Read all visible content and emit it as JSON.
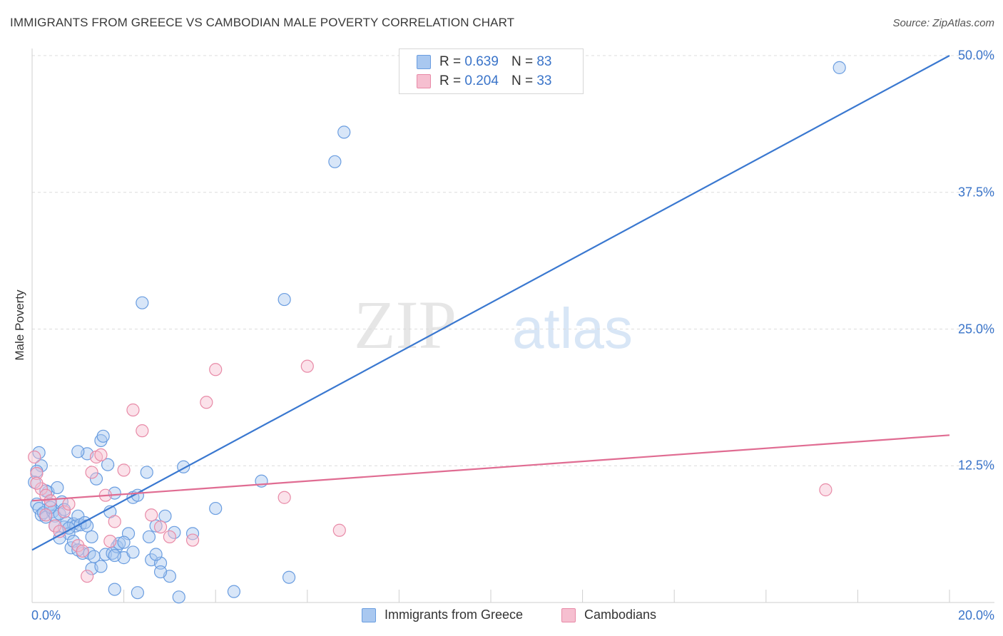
{
  "header": {
    "title": "IMMIGRANTS FROM GREECE VS CAMBODIAN MALE POVERTY CORRELATION CHART",
    "source": "Source: ZipAtlas.com"
  },
  "watermark": {
    "zip": "ZIP",
    "atlas": "atlas"
  },
  "legend": {
    "rows": [
      {
        "r_label": "R =",
        "r_value": "0.639",
        "n_label": "N =",
        "n_value": "83",
        "color": "#a9c8f0"
      },
      {
        "r_label": "R =",
        "r_value": "0.204",
        "n_label": "N =",
        "n_value": "33",
        "color": "#f6bfd0"
      }
    ]
  },
  "chart_data": {
    "type": "scatter",
    "ylabel": "Male Poverty",
    "xlim": [
      0,
      20
    ],
    "ylim": [
      0,
      50
    ],
    "x_tick_labels": [
      "0.0%",
      "20.0%"
    ],
    "y_ticks": [
      12.5,
      25.0,
      37.5,
      50.0
    ],
    "y_tick_labels": [
      "12.5%",
      "25.0%",
      "37.5%",
      "50.0%"
    ],
    "grid": true,
    "legend_position": "top-center",
    "series": [
      {
        "name": "Immigrants from Greece",
        "color": "#6a9de0",
        "fill": "#a9c8f0",
        "trend": {
          "x": [
            0,
            20
          ],
          "y": [
            4.8,
            50.0
          ],
          "color": "#3a78d0"
        },
        "points": [
          [
            0.1,
            9.0
          ],
          [
            0.15,
            8.6
          ],
          [
            0.2,
            8.0
          ],
          [
            0.25,
            8.2
          ],
          [
            0.3,
            7.8
          ],
          [
            0.35,
            10.1
          ],
          [
            0.4,
            9.0
          ],
          [
            0.45,
            8.3
          ],
          [
            0.5,
            7.9
          ],
          [
            0.55,
            10.5
          ],
          [
            0.6,
            8.1
          ],
          [
            0.65,
            9.2
          ],
          [
            0.7,
            6.9
          ],
          [
            0.75,
            7.3
          ],
          [
            0.8,
            6.3
          ],
          [
            0.85,
            5.0
          ],
          [
            0.9,
            7.2
          ],
          [
            0.95,
            7.0
          ],
          [
            1.0,
            7.9
          ],
          [
            1.05,
            7.1
          ],
          [
            1.1,
            4.5
          ],
          [
            1.15,
            7.3
          ],
          [
            1.2,
            7.0
          ],
          [
            1.25,
            4.5
          ],
          [
            1.3,
            3.1
          ],
          [
            1.35,
            4.2
          ],
          [
            1.4,
            11.3
          ],
          [
            1.5,
            14.8
          ],
          [
            1.55,
            15.2
          ],
          [
            1.6,
            4.4
          ],
          [
            1.65,
            12.6
          ],
          [
            1.7,
            8.3
          ],
          [
            1.75,
            4.5
          ],
          [
            1.8,
            10.0
          ],
          [
            1.85,
            5.1
          ],
          [
            1.9,
            5.4
          ],
          [
            2.0,
            4.1
          ],
          [
            2.1,
            6.3
          ],
          [
            2.2,
            9.6
          ],
          [
            2.3,
            9.8
          ],
          [
            2.4,
            27.4
          ],
          [
            2.5,
            11.9
          ],
          [
            2.55,
            6.0
          ],
          [
            2.6,
            3.9
          ],
          [
            2.7,
            7.0
          ],
          [
            2.8,
            3.6
          ],
          [
            2.9,
            7.9
          ],
          [
            3.0,
            2.4
          ],
          [
            3.1,
            6.4
          ],
          [
            3.3,
            12.4
          ],
          [
            3.5,
            6.3
          ],
          [
            4.0,
            8.6
          ],
          [
            4.4,
            1.0
          ],
          [
            5.0,
            11.1
          ],
          [
            5.5,
            27.7
          ],
          [
            5.6,
            2.3
          ],
          [
            6.6,
            40.3
          ],
          [
            6.8,
            43.0
          ],
          [
            1.2,
            13.6
          ],
          [
            1.0,
            13.8
          ],
          [
            0.3,
            10.2
          ],
          [
            0.4,
            8.7
          ],
          [
            0.5,
            7.0
          ],
          [
            0.6,
            5.9
          ],
          [
            0.7,
            8.5
          ],
          [
            0.8,
            6.8
          ],
          [
            0.9,
            5.6
          ],
          [
            1.0,
            4.8
          ],
          [
            1.5,
            3.3
          ],
          [
            1.8,
            4.3
          ],
          [
            2.0,
            5.5
          ],
          [
            2.2,
            4.6
          ],
          [
            2.3,
            0.9
          ],
          [
            2.7,
            4.4
          ],
          [
            2.8,
            2.8
          ],
          [
            3.2,
            0.5
          ],
          [
            1.3,
            6.0
          ],
          [
            0.2,
            12.5
          ],
          [
            0.15,
            13.7
          ],
          [
            0.1,
            12.0
          ],
          [
            1.8,
            1.2
          ],
          [
            17.6,
            48.9
          ],
          [
            0.05,
            11.0
          ]
        ]
      },
      {
        "name": "Cambodians",
        "color": "#e88aa7",
        "fill": "#f6bfd0",
        "trend": {
          "x": [
            0,
            20
          ],
          "y": [
            9.3,
            15.3
          ],
          "color": "#e06c92"
        },
        "points": [
          [
            0.05,
            13.3
          ],
          [
            0.1,
            11.8
          ],
          [
            0.2,
            10.4
          ],
          [
            0.3,
            9.8
          ],
          [
            0.4,
            9.3
          ],
          [
            0.5,
            7.0
          ],
          [
            0.6,
            6.5
          ],
          [
            0.7,
            8.3
          ],
          [
            0.8,
            9.0
          ],
          [
            1.0,
            5.2
          ],
          [
            1.1,
            4.7
          ],
          [
            1.2,
            2.4
          ],
          [
            1.3,
            11.9
          ],
          [
            1.4,
            13.3
          ],
          [
            1.5,
            13.5
          ],
          [
            1.6,
            9.8
          ],
          [
            1.7,
            5.6
          ],
          [
            1.8,
            7.4
          ],
          [
            2.0,
            12.1
          ],
          [
            2.2,
            17.6
          ],
          [
            2.4,
            15.7
          ],
          [
            2.6,
            8.0
          ],
          [
            2.8,
            6.9
          ],
          [
            3.0,
            6.0
          ],
          [
            3.5,
            5.7
          ],
          [
            3.8,
            18.3
          ],
          [
            4.0,
            21.3
          ],
          [
            5.5,
            9.6
          ],
          [
            6.0,
            21.6
          ],
          [
            6.7,
            6.6
          ],
          [
            17.3,
            10.3
          ],
          [
            0.1,
            10.9
          ],
          [
            0.3,
            8.0
          ]
        ]
      }
    ]
  },
  "bottom_legend": [
    {
      "label": "Immigrants from Greece",
      "color": "#a9c8f0"
    },
    {
      "label": "Cambodians",
      "color": "#f6bfd0"
    }
  ]
}
